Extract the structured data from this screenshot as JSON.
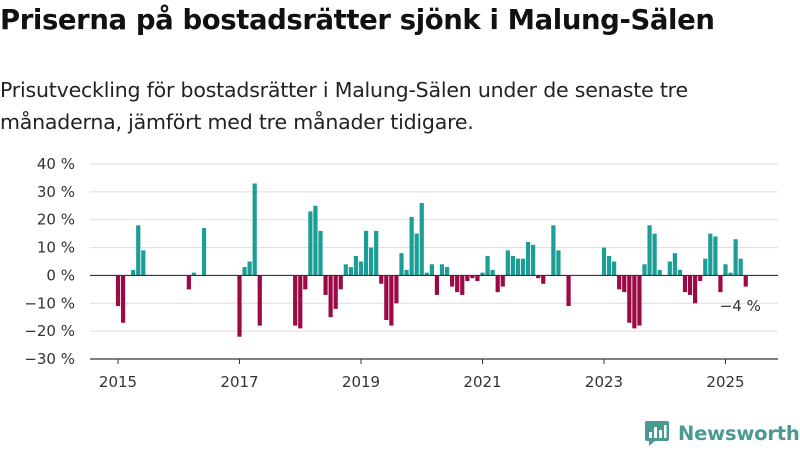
{
  "title": "Priserna på bostadsrätter sjönk i Malung-Sälen",
  "subtitle": "Prisutveckling för bostadsrätter i Malung-Sälen under de senaste tre månaderna, jämfört med tre månader tidigare.",
  "brand": "Newsworthy",
  "colors": {
    "positive": "#1a9e96",
    "negative": "#9b0a45",
    "grid": "#dddddd",
    "axis": "#333333"
  },
  "chart_data": {
    "type": "bar",
    "x_ticks": [
      "2015",
      "2017",
      "2019",
      "2021",
      "2023",
      "2025"
    ],
    "y_ticks": [
      "40 %",
      "30 %",
      "20 %",
      "10 %",
      "0 %",
      "−10 %",
      "−20 %",
      "−30 %"
    ],
    "ylim": [
      -30,
      40
    ],
    "grid": true,
    "annotation": {
      "x": "2025-04",
      "text": "−4 %"
    },
    "series": [
      {
        "values": [
          [
            "2015-01",
            -11
          ],
          [
            "2015-02",
            -17
          ],
          [
            "2015-04",
            2
          ],
          [
            "2015-05",
            18
          ],
          [
            "2015-06",
            9
          ],
          [
            "2016-03",
            -5
          ],
          [
            "2016-04",
            1
          ],
          [
            "2016-06",
            17
          ],
          [
            "2017-01",
            -22
          ],
          [
            "2017-02",
            3
          ],
          [
            "2017-03",
            5
          ],
          [
            "2017-04",
            33
          ],
          [
            "2017-05",
            -18
          ],
          [
            "2017-12",
            -18
          ],
          [
            "2018-01",
            -19
          ],
          [
            "2018-02",
            -5
          ],
          [
            "2018-03",
            23
          ],
          [
            "2018-04",
            25
          ],
          [
            "2018-05",
            16
          ],
          [
            "2018-06",
            -7
          ],
          [
            "2018-07",
            -15
          ],
          [
            "2018-08",
            -12
          ],
          [
            "2018-09",
            -5
          ],
          [
            "2018-10",
            4
          ],
          [
            "2018-11",
            3
          ],
          [
            "2018-12",
            7
          ],
          [
            "2019-01",
            5
          ],
          [
            "2019-02",
            16
          ],
          [
            "2019-03",
            10
          ],
          [
            "2019-04",
            16
          ],
          [
            "2019-05",
            -3
          ],
          [
            "2019-06",
            -16
          ],
          [
            "2019-07",
            -18
          ],
          [
            "2019-08",
            -10
          ],
          [
            "2019-09",
            8
          ],
          [
            "2019-10",
            2
          ],
          [
            "2019-11",
            21
          ],
          [
            "2019-12",
            15
          ],
          [
            "2020-01",
            26
          ],
          [
            "2020-02",
            1
          ],
          [
            "2020-03",
            4
          ],
          [
            "2020-04",
            -7
          ],
          [
            "2020-05",
            4
          ],
          [
            "2020-06",
            3
          ],
          [
            "2020-07",
            -4
          ],
          [
            "2020-08",
            -6
          ],
          [
            "2020-09",
            -7
          ],
          [
            "2020-10",
            -2
          ],
          [
            "2020-11",
            -1
          ],
          [
            "2020-12",
            -2
          ],
          [
            "2021-01",
            1
          ],
          [
            "2021-02",
            7
          ],
          [
            "2021-03",
            2
          ],
          [
            "2021-04",
            -6
          ],
          [
            "2021-05",
            -4
          ],
          [
            "2021-06",
            9
          ],
          [
            "2021-07",
            7
          ],
          [
            "2021-08",
            6
          ],
          [
            "2021-09",
            6
          ],
          [
            "2021-10",
            12
          ],
          [
            "2021-11",
            11
          ],
          [
            "2021-12",
            -1
          ],
          [
            "2022-01",
            -3
          ],
          [
            "2022-03",
            18
          ],
          [
            "2022-04",
            9
          ],
          [
            "2022-06",
            -11
          ],
          [
            "2023-01",
            10
          ],
          [
            "2023-02",
            7
          ],
          [
            "2023-03",
            5
          ],
          [
            "2023-04",
            -5
          ],
          [
            "2023-05",
            -6
          ],
          [
            "2023-06",
            -17
          ],
          [
            "2023-07",
            -19
          ],
          [
            "2023-08",
            -18
          ],
          [
            "2023-09",
            4
          ],
          [
            "2023-10",
            18
          ],
          [
            "2023-11",
            15
          ],
          [
            "2023-12",
            2
          ],
          [
            "2024-02",
            5
          ],
          [
            "2024-03",
            8
          ],
          [
            "2024-04",
            2
          ],
          [
            "2024-05",
            -6
          ],
          [
            "2024-06",
            -7
          ],
          [
            "2024-07",
            -10
          ],
          [
            "2024-08",
            -2
          ],
          [
            "2024-09",
            6
          ],
          [
            "2024-10",
            15
          ],
          [
            "2024-11",
            14
          ],
          [
            "2024-12",
            -6
          ],
          [
            "2025-01",
            4
          ],
          [
            "2025-02",
            1
          ],
          [
            "2025-03",
            13
          ],
          [
            "2025-04",
            6
          ],
          [
            "2025-05",
            -4
          ]
        ]
      }
    ]
  }
}
